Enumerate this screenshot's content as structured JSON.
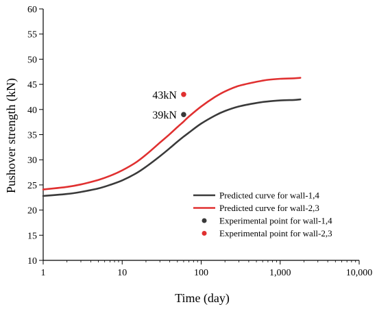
{
  "chart_data": {
    "type": "line",
    "xlabel": "Time (day)",
    "ylabel": "Pushover strength (kN)",
    "x_scale": "log",
    "xlim": [
      1,
      10000
    ],
    "ylim": [
      10,
      60
    ],
    "x_ticks": [
      1,
      10,
      100,
      1000,
      10000
    ],
    "x_tick_labels": [
      "1",
      "10",
      "100",
      "1,000",
      "10,000"
    ],
    "y_ticks": [
      10,
      15,
      20,
      25,
      30,
      35,
      40,
      45,
      50,
      55,
      60
    ],
    "y_tick_labels": [
      "10",
      "15",
      "20",
      "25",
      "30",
      "35",
      "40",
      "45",
      "50",
      "55",
      "60"
    ],
    "grid": false,
    "legend_position": "bottom-right",
    "series": [
      {
        "name": "Predicted curve for wall-1,4",
        "kind": "line",
        "color": "#3a3a3a",
        "x": [
          1,
          2,
          3,
          5,
          7,
          10,
          15,
          20,
          30,
          40,
          50,
          60,
          70,
          100,
          150,
          200,
          300,
          500,
          700,
          1000,
          1500,
          1800
        ],
        "y": [
          22.8,
          23.2,
          23.6,
          24.3,
          25.0,
          25.9,
          27.3,
          28.6,
          30.7,
          32.3,
          33.6,
          34.6,
          35.4,
          37.2,
          38.8,
          39.7,
          40.6,
          41.3,
          41.6,
          41.8,
          41.9,
          42.0
        ]
      },
      {
        "name": "Predicted curve for wall-2,3",
        "kind": "line",
        "color": "#e03030",
        "x": [
          1,
          2,
          3,
          5,
          7,
          10,
          15,
          20,
          30,
          40,
          50,
          60,
          70,
          100,
          150,
          200,
          300,
          500,
          700,
          1000,
          1500,
          1800
        ],
        "y": [
          24.1,
          24.6,
          25.1,
          26.0,
          26.8,
          27.9,
          29.5,
          31.0,
          33.4,
          35.1,
          36.5,
          37.6,
          38.6,
          40.6,
          42.5,
          43.6,
          44.7,
          45.5,
          45.9,
          46.1,
          46.2,
          46.3
        ]
      },
      {
        "name": "Experimental point for wall-1,4",
        "kind": "point",
        "color": "#3a3a3a",
        "x": [
          60
        ],
        "y": [
          39
        ]
      },
      {
        "name": "Experimental point for wall-2,3",
        "kind": "point",
        "color": "#e03030",
        "x": [
          60
        ],
        "y": [
          43
        ]
      }
    ],
    "annotations": [
      {
        "text": "43kN",
        "x": 60,
        "y": 43
      },
      {
        "text": "39kN",
        "x": 60,
        "y": 39
      }
    ]
  }
}
